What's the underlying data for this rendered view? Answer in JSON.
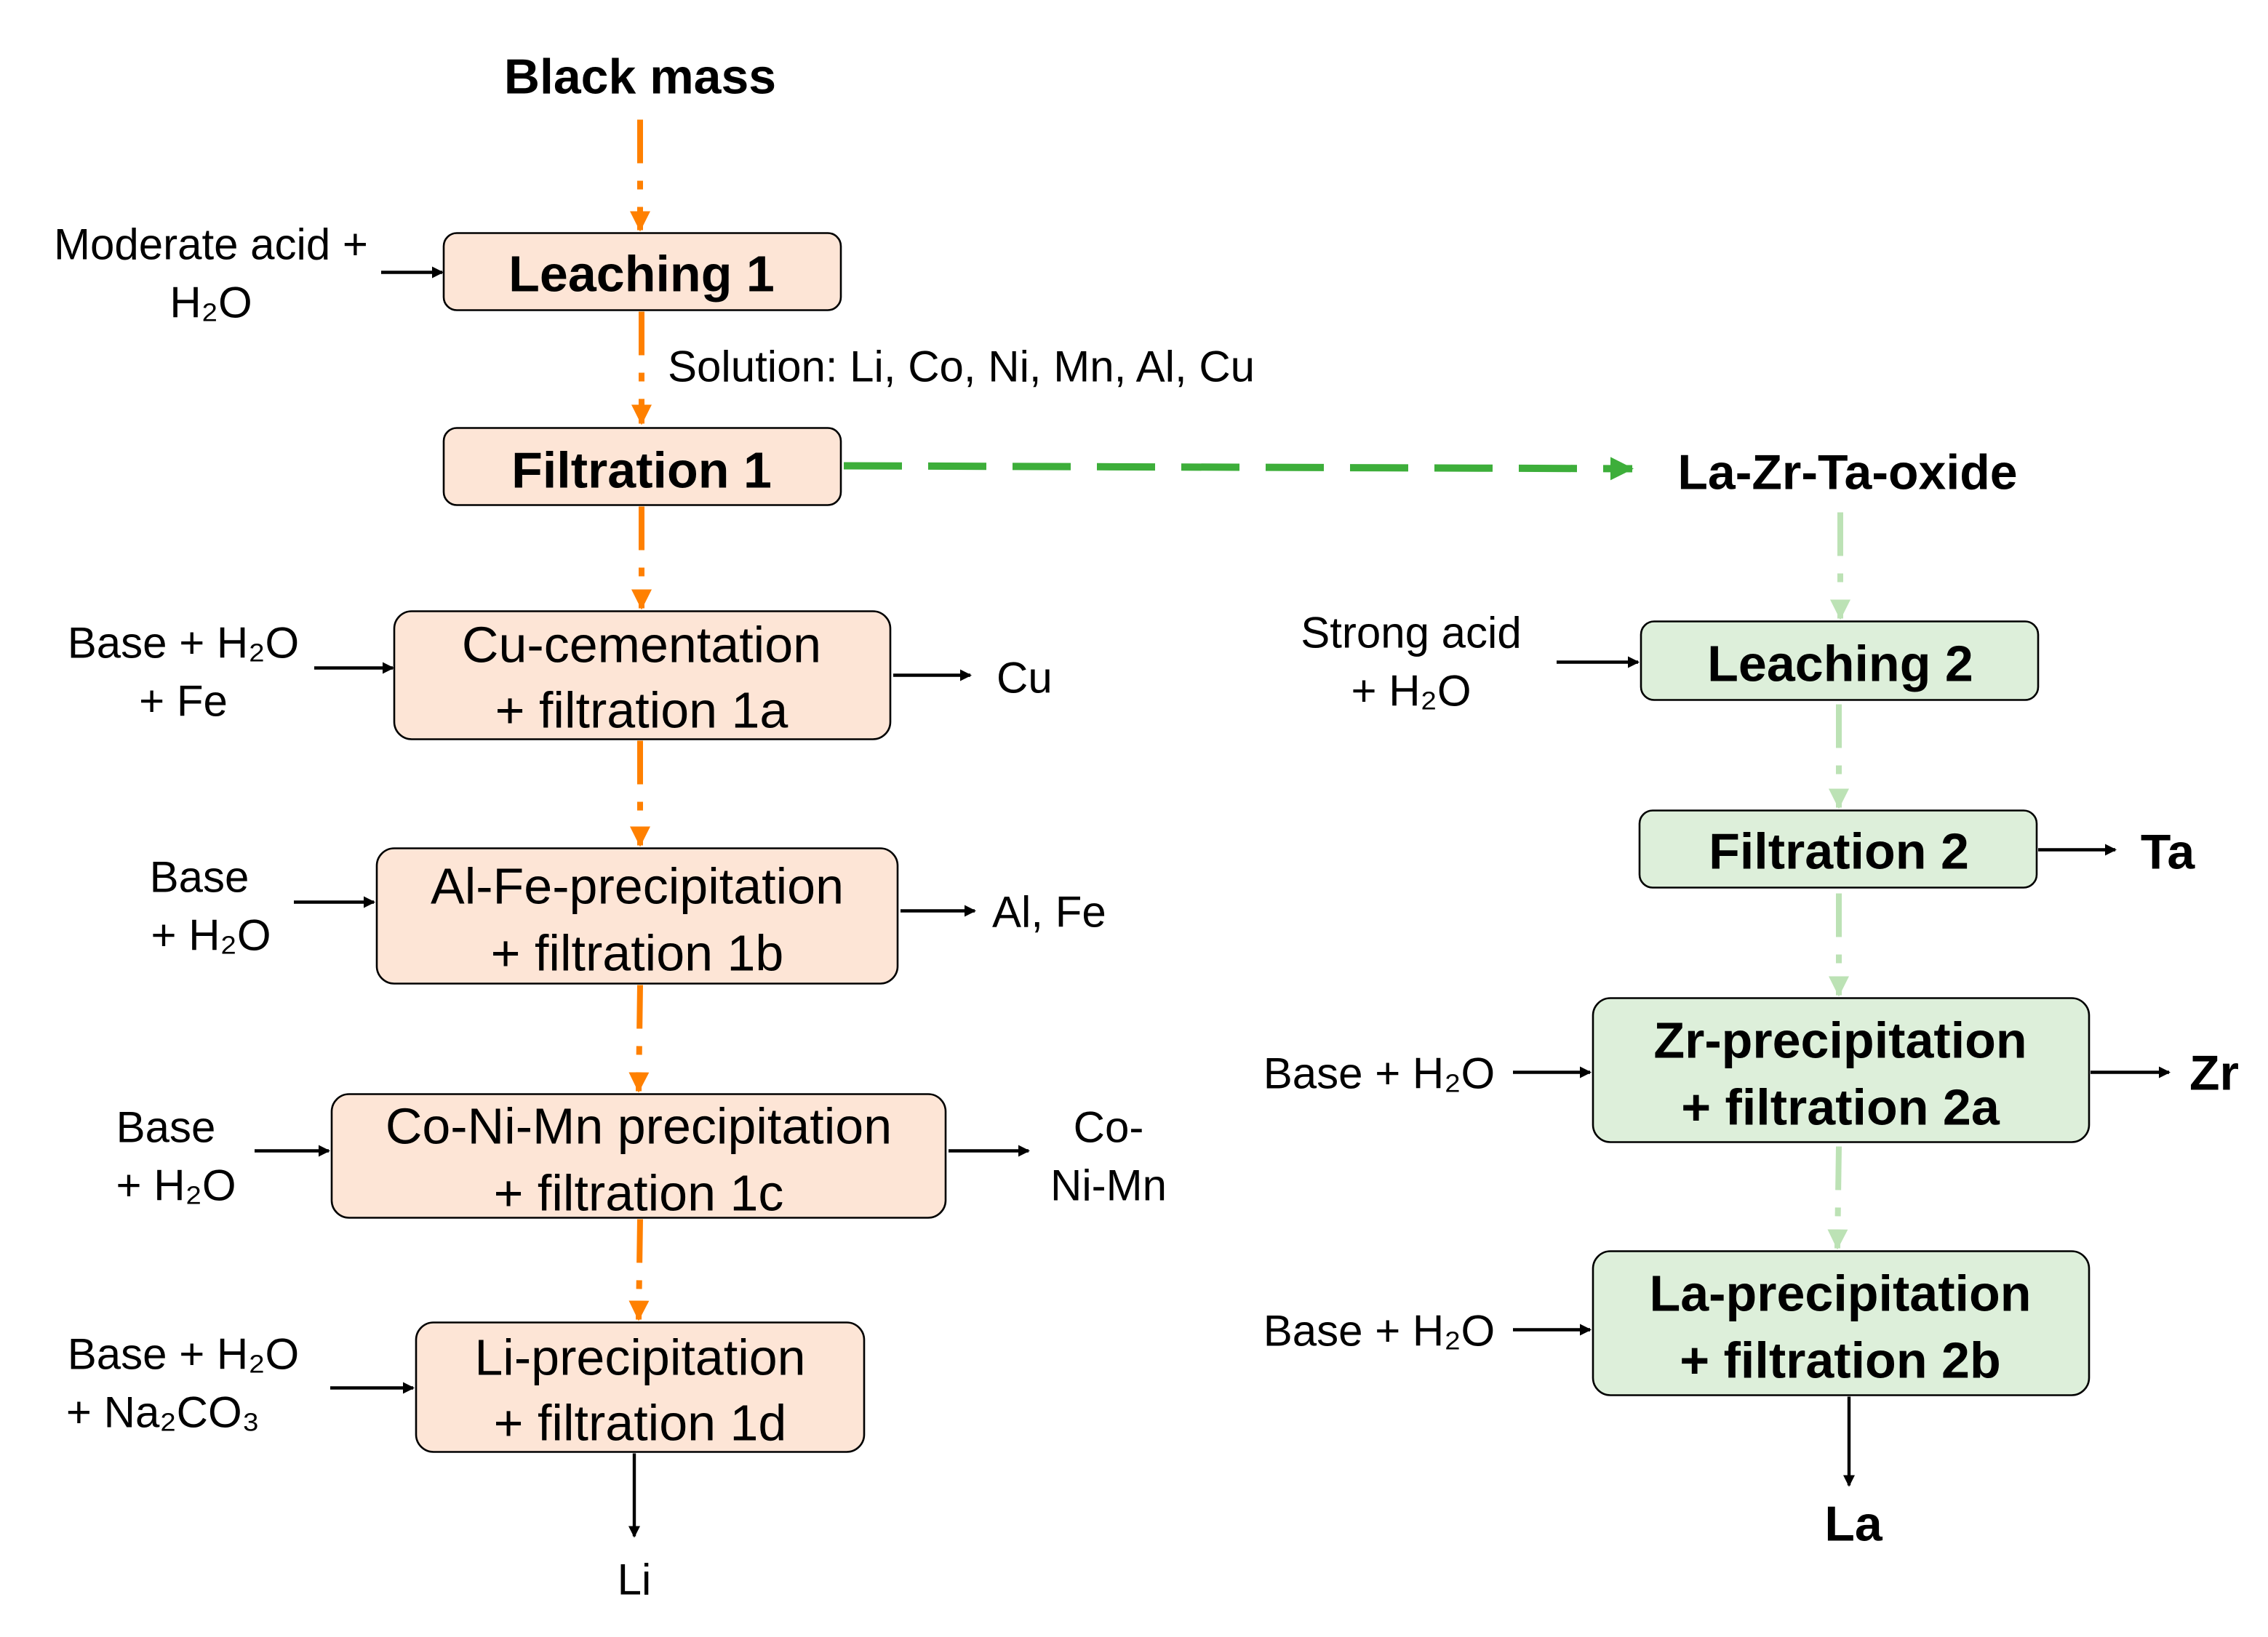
{
  "colors": {
    "left_box": "#FDE5D6",
    "right_box": "#DDEFDA",
    "left_flow": "#FF8000",
    "transfer_flow": "#3DAE3A",
    "right_flow": "#BCE2B5"
  },
  "feed": "Black mass",
  "intermediate": "La-Zr-Ta-oxide",
  "solution_label": "Solution: Li, Co, Ni, Mn, Al, Cu",
  "left_steps": [
    {
      "line1": "Leaching 1",
      "input": [
        "Moderate acid +",
        "H₂O"
      ]
    },
    {
      "line1": "Filtration 1"
    },
    {
      "line1": "Cu-cementation",
      "line2": "+ filtration 1a",
      "input": [
        "Base + H₂O",
        "+ Fe"
      ],
      "output": [
        "Cu"
      ]
    },
    {
      "line1": "Al-Fe-precipitation",
      "line2": "+ filtration 1b",
      "input": [
        "Base",
        "+ H₂O"
      ],
      "output": [
        "Al, Fe"
      ]
    },
    {
      "line1": "Co-Ni-Mn precipitation",
      "line2": "+ filtration 1c",
      "input": [
        "Base",
        "+ H₂O"
      ],
      "output": [
        "Co-",
        "Ni-Mn"
      ]
    },
    {
      "line1": "Li-precipitation",
      "line2": "+ filtration 1d",
      "input": [
        "Base + H₂O",
        "+ Na₂CO₃"
      ],
      "output": [
        "Li"
      ]
    }
  ],
  "right_steps": [
    {
      "line1": "Leaching 2",
      "input": [
        "Strong acid",
        "+ H₂O"
      ]
    },
    {
      "line1": "Filtration 2",
      "output": "Ta"
    },
    {
      "line1": "Zr-precipitation",
      "line2": "+ filtration 2a",
      "input": "Base + H₂O",
      "output": "Zr"
    },
    {
      "line1": "La-precipitation",
      "line2": "+ filtration 2b",
      "input": "Base + H₂O",
      "output": "La"
    }
  ]
}
